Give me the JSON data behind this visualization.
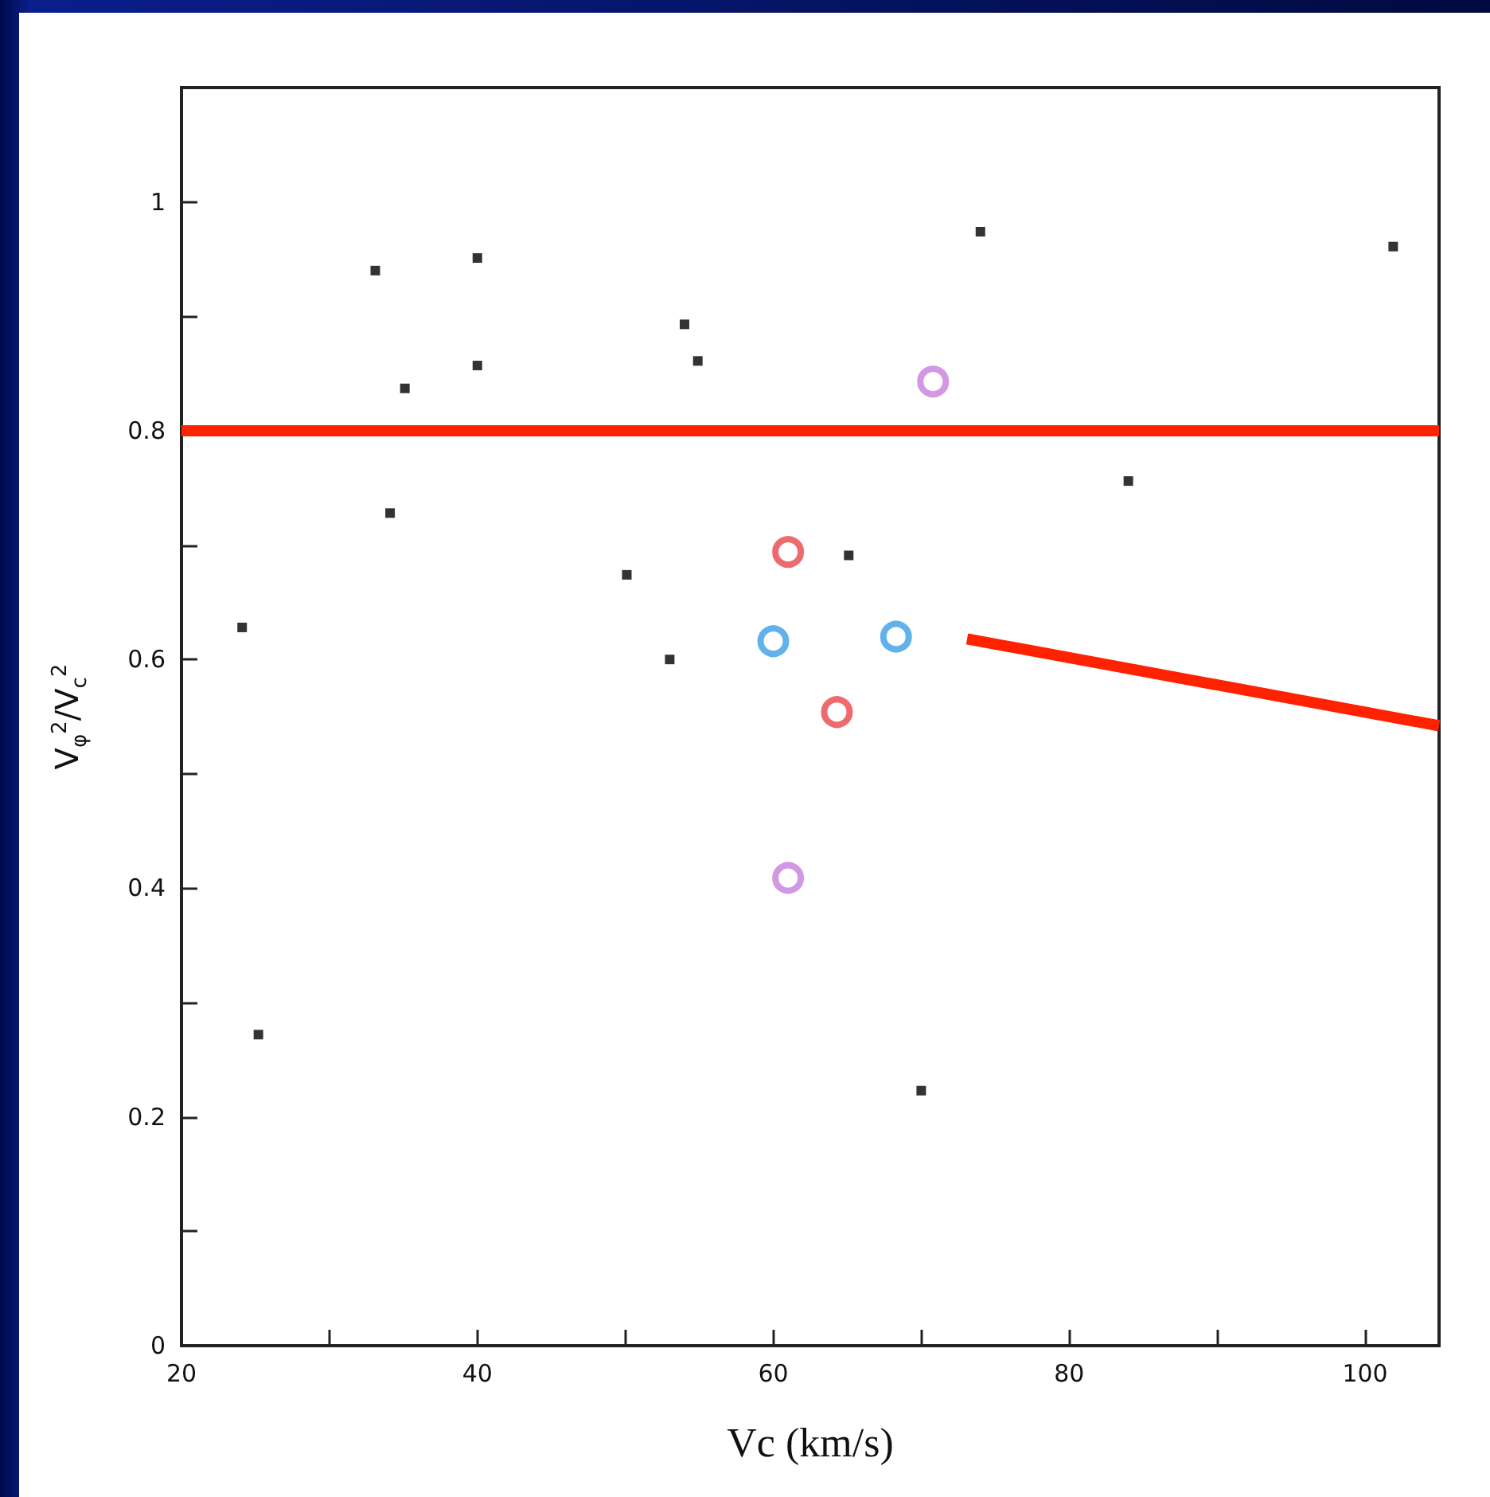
{
  "chart_data": {
    "type": "scatter",
    "xlabel": "Vc (km/s)",
    "ylabel": "V$_{φ}$$^{2}$/V$_{c}$$^{2}$",
    "xlim": [
      20,
      105
    ],
    "xticks": [
      20,
      {
        "value": 30,
        "label": null
      },
      40,
      {
        "value": 50,
        "label": null
      },
      60,
      {
        "value": 70,
        "label": null
      },
      80,
      {
        "value": 90,
        "label": null
      },
      100
    ],
    "ylim": [
      0,
      1.1
    ],
    "yticks": [
      0,
      {
        "value": 0.1,
        "label": null
      },
      0.2,
      {
        "value": 0.3,
        "label": null
      },
      0.4,
      {
        "value": 0.5,
        "label": null
      },
      0.6,
      {
        "value": 0.7,
        "label": null
      },
      0.8,
      {
        "value": 0.9,
        "label": null
      },
      1
    ],
    "series": [
      {
        "marker": "square",
        "color": "#000000",
        "x": [
          24.1,
          25.2,
          33.1,
          34.1,
          35.1,
          40,
          40,
          50.1,
          53,
          54,
          54.9,
          65.1,
          70,
          74,
          84,
          101.9
        ],
        "values": [
          0.628,
          0.272,
          0.94,
          0.728,
          0.837,
          0.951,
          0.857,
          0.674,
          0.6,
          0.893,
          0.861,
          0.691,
          0.223,
          0.974,
          0.756,
          0.961
        ]
      },
      {
        "marker": "circle",
        "color": "#e8464a",
        "x": [
          61,
          64.3
        ],
        "values": [
          0.694,
          0.554
        ]
      },
      {
        "marker": "circle",
        "color": "#3a9fe6",
        "x": [
          60,
          68.3
        ],
        "values": [
          0.616,
          0.62
        ]
      },
      {
        "marker": "circle",
        "color": "#c77ddf",
        "x": [
          70.8,
          61
        ],
        "values": [
          0.843,
          0.409
        ]
      },
      {
        "type": "line",
        "marker": "none",
        "color": "#ff2200",
        "x": [
          73.1,
          105
        ],
        "values": [
          0.618,
          0.542
        ]
      }
    ],
    "ref_lines": [
      {
        "axis": "y",
        "value": 0.8,
        "color": "#ff2200",
        "line_style": "solid"
      }
    ]
  }
}
